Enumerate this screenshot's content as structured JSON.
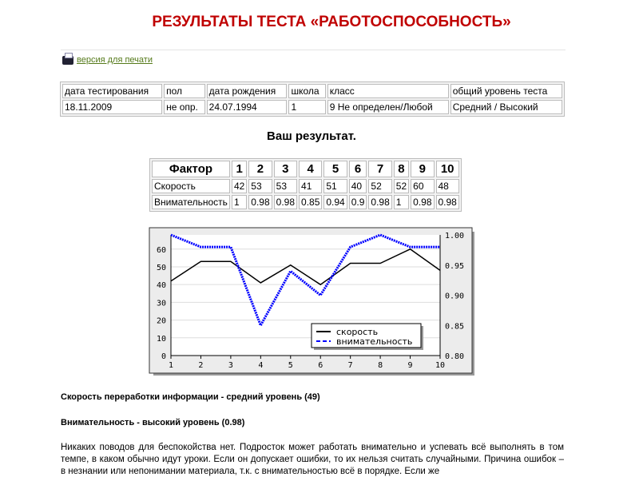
{
  "title": "РЕЗУЛЬТАТЫ ТЕСТА  «РАБОТОСПОСОБНОСТЬ»",
  "print_link": "версия для печати",
  "info": {
    "headers": [
      "дата тестирования",
      "пол",
      "дата рождения",
      "школа",
      "класс",
      "общий уровень теста"
    ],
    "values": [
      "18.11.2009",
      "не опр.",
      "24.07.1994",
      "1",
      "9 Не определен/Любой",
      "Средний / Высокий"
    ]
  },
  "subtitle": "Ваш результат.",
  "factors": {
    "header": [
      "Фактор",
      "1",
      "2",
      "3",
      "4",
      "5",
      "6",
      "7",
      "8",
      "9",
      "10"
    ],
    "rows": [
      [
        "Скорость",
        "42",
        "53",
        "53",
        "41",
        "51",
        "40",
        "52",
        "52",
        "60",
        "48"
      ],
      [
        "Внимательность",
        "1",
        "0.98",
        "0.98",
        "0.85",
        "0.94",
        "0.9",
        "0.98",
        "1",
        "0.98",
        "0.98"
      ]
    ]
  },
  "chart_data": {
    "type": "line",
    "x": [
      1,
      2,
      3,
      4,
      5,
      6,
      7,
      8,
      9,
      10
    ],
    "series": [
      {
        "name": "скорость",
        "axis": "left",
        "color": "#000000",
        "style": "solid",
        "values": [
          42,
          53,
          53,
          41,
          51,
          40,
          52,
          52,
          60,
          48
        ]
      },
      {
        "name": "внимательность",
        "axis": "right",
        "color": "#0000ff",
        "style": "dashed",
        "values": [
          1,
          0.98,
          0.98,
          0.85,
          0.94,
          0.9,
          0.98,
          1,
          0.98,
          0.98
        ]
      }
    ],
    "ylim_left": [
      0,
      68
    ],
    "ylim_right": [
      0.8,
      1.0
    ],
    "yticks_left": [
      0,
      10,
      20,
      30,
      40,
      50,
      60
    ],
    "yticks_right": [
      "0.80",
      "0.85",
      "0.90",
      "0.95",
      "1.00"
    ],
    "xticks": [
      "1",
      "2",
      "3",
      "4",
      "5",
      "6",
      "7",
      "8",
      "9",
      "10"
    ],
    "grid": true,
    "legend": "bottom-right"
  },
  "results": {
    "speed": "Скорость переработки информации - средний уровень (49)",
    "attention": "Внимательность - высокий уровень (0.98)"
  },
  "description": "Никаких поводов для беспокойства нет. Подросток может работать внимательно и успевать всё выполнять в том темпе, в каком обычно идут уроки. Если он допускает ошибки, то их нельзя считать случайными. Причина ошибок – в незнании или непонимании материала, т.к. с внимательностью всё в порядке. Если же"
}
